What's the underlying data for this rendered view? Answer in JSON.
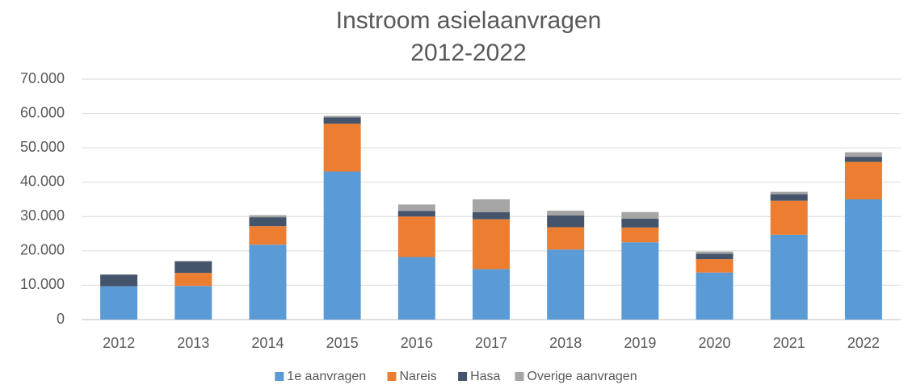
{
  "chart_data": {
    "type": "stacked_bar",
    "title": "Instroom asielaanvragen 2012-2022",
    "categories": [
      "2012",
      "2013",
      "2014",
      "2015",
      "2016",
      "2017",
      "2018",
      "2019",
      "2020",
      "2021",
      "2022"
    ],
    "series": [
      {
        "name": "1e aanvragen",
        "color": "#5b9bd5",
        "values": [
          9700,
          9800,
          21800,
          43100,
          18200,
          14700,
          20400,
          22500,
          13700,
          24700,
          35000
        ]
      },
      {
        "name": "Nareis",
        "color": "#ed7d31",
        "values": [
          0,
          3800,
          5400,
          13900,
          11800,
          14500,
          6500,
          4300,
          3900,
          9900,
          10900
        ]
      },
      {
        "name": "Hasa",
        "color": "#44546a",
        "values": [
          3400,
          3300,
          2600,
          1900,
          1600,
          2100,
          3400,
          2600,
          1600,
          1900,
          1500
        ]
      },
      {
        "name": "Overige aanvragen",
        "color": "#a5a5a5",
        "values": [
          0,
          200,
          600,
          400,
          1900,
          3700,
          1400,
          1900,
          600,
          700,
          1300
        ]
      }
    ],
    "ylim": [
      0,
      70000
    ],
    "yticks": [
      0,
      {
        "value": 10000,
        "label": "10.000"
      },
      {
        "value": 20000,
        "label": "20.000"
      },
      {
        "value": 30000,
        "label": "30.000"
      },
      {
        "value": 40000,
        "label": "40.000"
      },
      {
        "value": 50000,
        "label": "50.000"
      },
      {
        "value": 60000,
        "label": "60.000"
      },
      {
        "value": 70000,
        "label": "70.000"
      }
    ],
    "grid": true,
    "legend": "bottom"
  }
}
